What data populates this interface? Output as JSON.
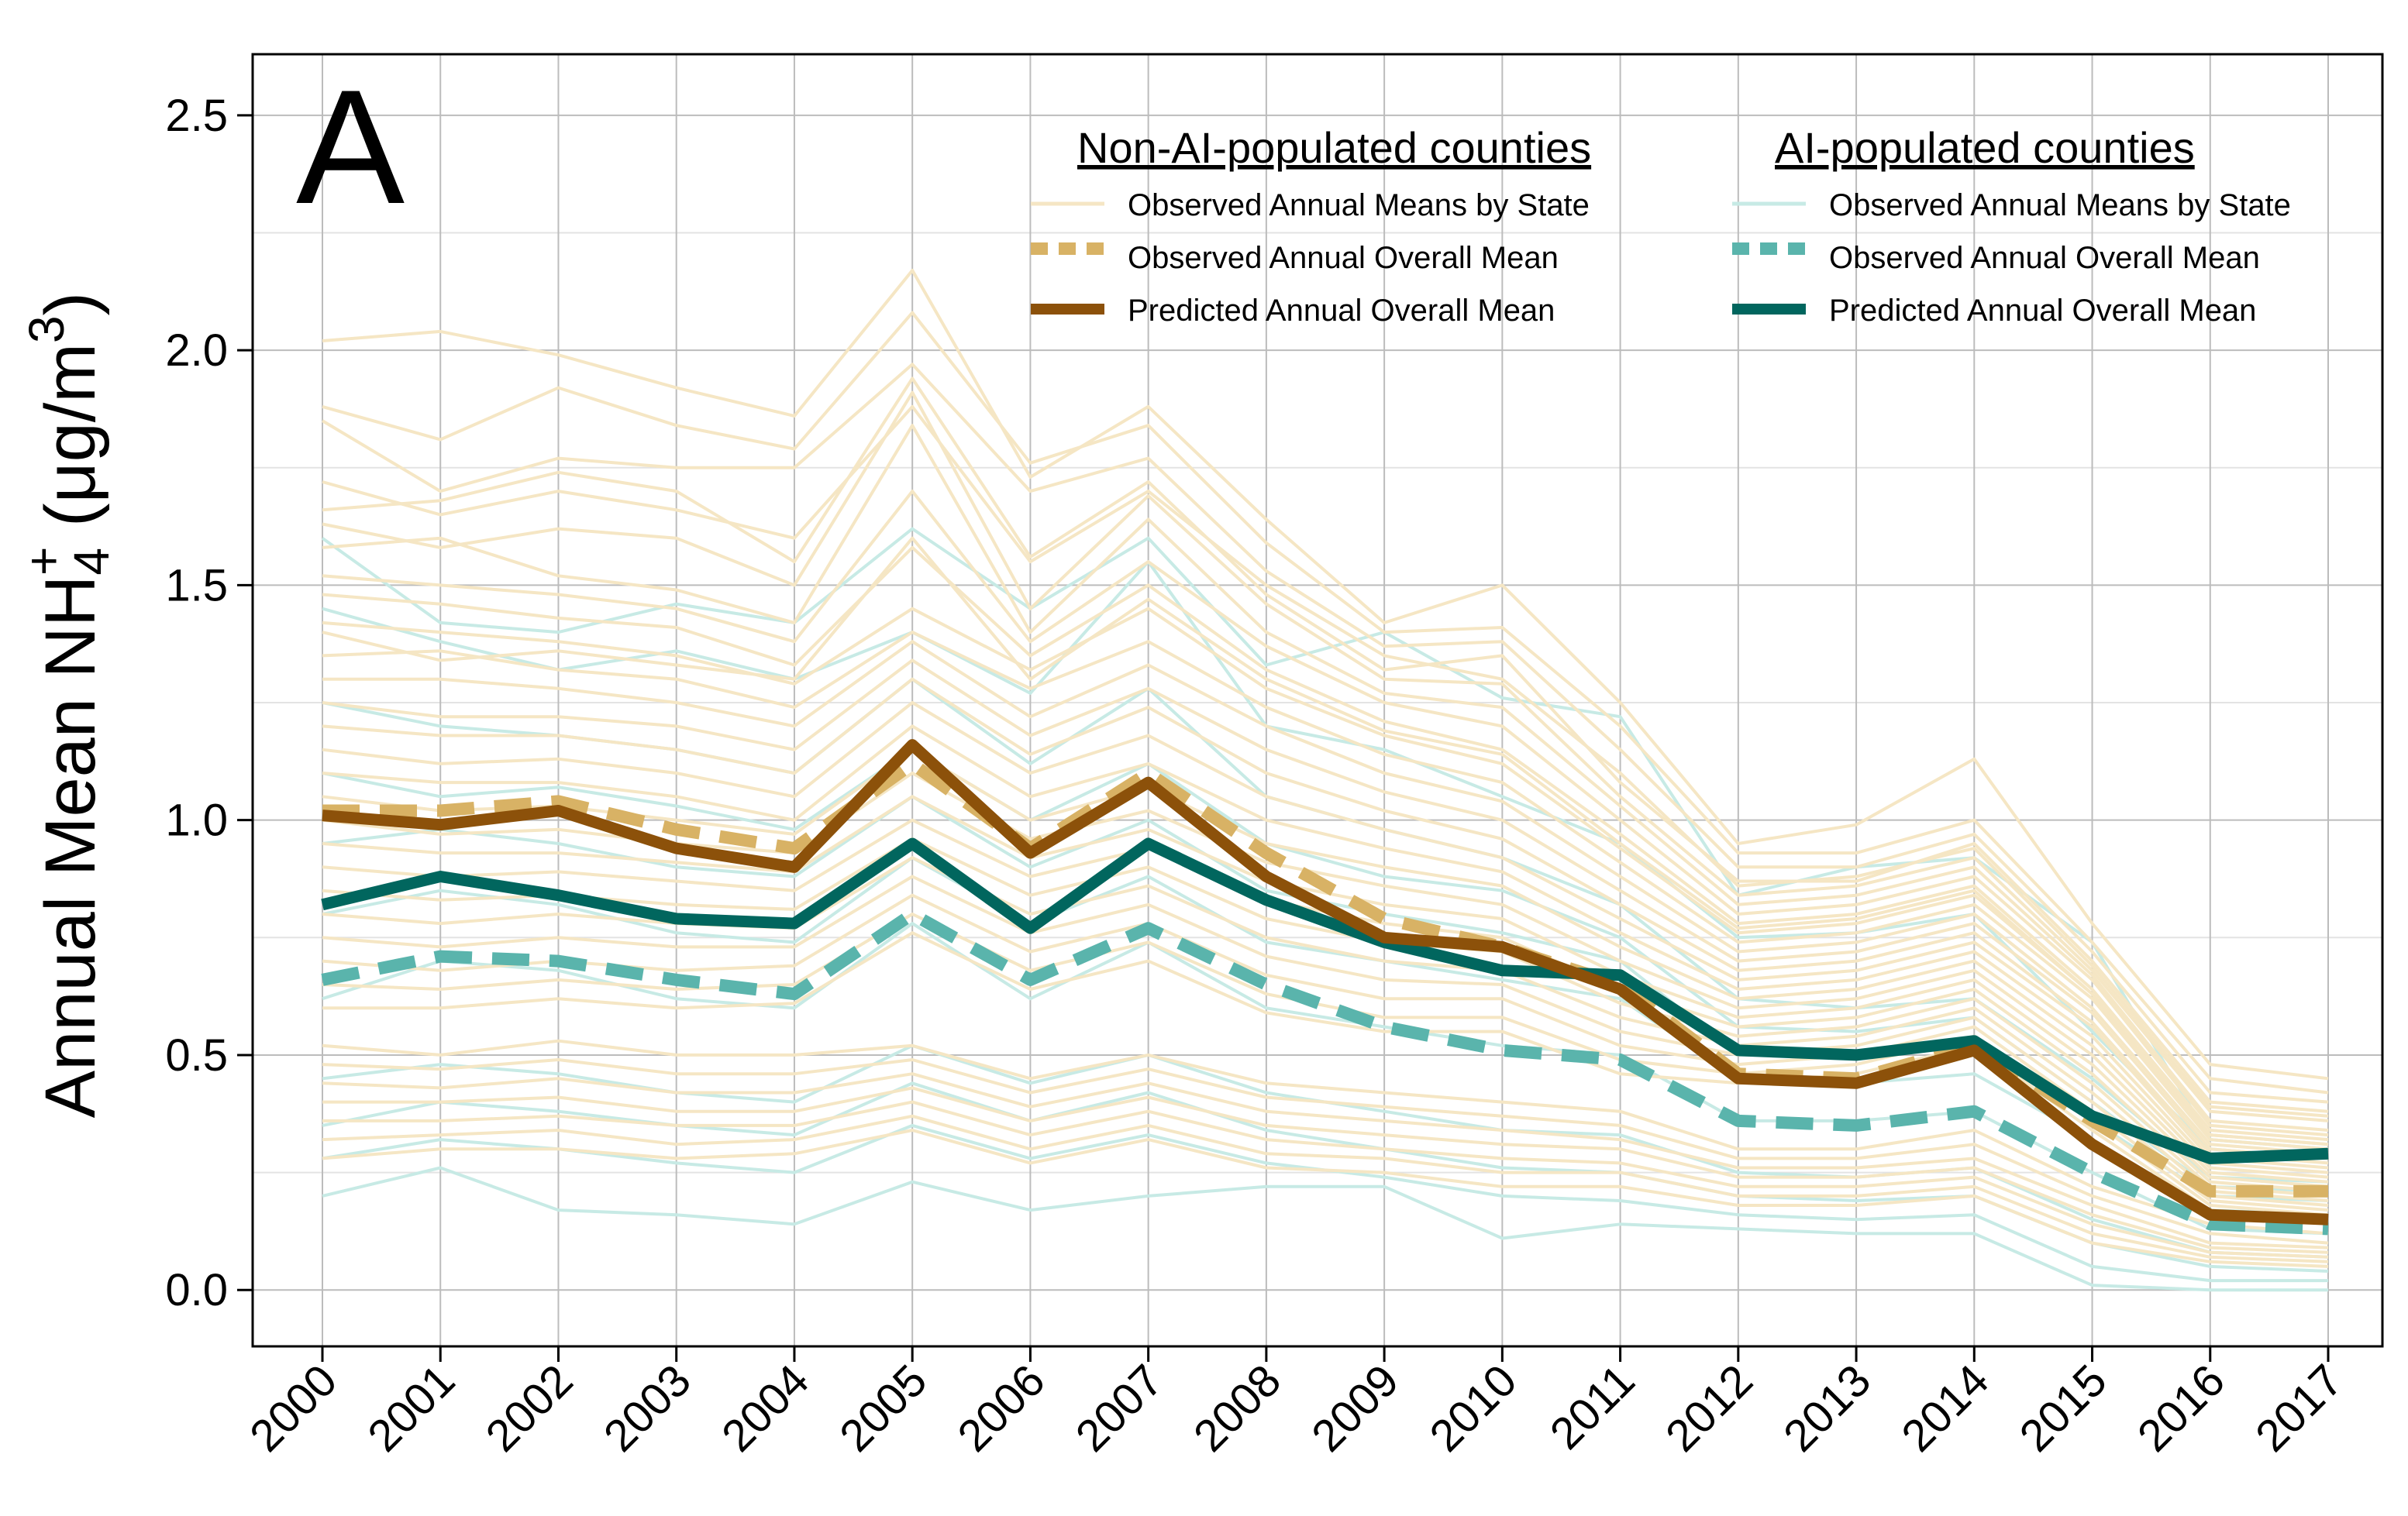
{
  "chart_data": {
    "type": "line",
    "panel_label": "A",
    "ylabel": {
      "main": "Annual Mean NH",
      "subscript": "4",
      "superscript": "+",
      "unit_open": " (μg/m",
      "unit_sup": "3",
      "unit_close": ")"
    },
    "xlabel": "",
    "x": [
      2000,
      2001,
      2002,
      2003,
      2004,
      2005,
      2006,
      2007,
      2008,
      2009,
      2010,
      2011,
      2012,
      2013,
      2014,
      2015,
      2016,
      2017
    ],
    "x_tick_labels": [
      "2000",
      "2001",
      "2002",
      "2003",
      "2004",
      "2005",
      "2006",
      "2007",
      "2008",
      "2009",
      "2010",
      "2011",
      "2012",
      "2013",
      "2014",
      "2015",
      "2016",
      "2017"
    ],
    "y_ticks": [
      0.0,
      0.5,
      1.0,
      1.5,
      2.0,
      2.5
    ],
    "y_tick_labels": [
      "0.0",
      "0.5",
      "1.0",
      "1.5",
      "2.0",
      "2.5"
    ],
    "ylim": [
      -0.12,
      2.63
    ],
    "grid": true,
    "legend": {
      "placement": "top-right",
      "groups": [
        {
          "title": "Non-AI-populated counties",
          "entries": [
            {
              "label": "Observed Annual Means by State",
              "color": "#f5e6c4",
              "style": "solid-thin"
            },
            {
              "label": "Observed Annual Overall Mean",
              "color": "#d8b265",
              "style": "dashed-thick"
            },
            {
              "label": "Predicted Annual Overall Mean",
              "color": "#8c510a",
              "style": "solid-thick"
            }
          ]
        },
        {
          "title": "AI-populated counties",
          "entries": [
            {
              "label": "Observed Annual Means by State",
              "color": "#c7eae5",
              "style": "solid-thin"
            },
            {
              "label": "Observed Annual Overall Mean",
              "color": "#5ab4ac",
              "style": "dashed-thick"
            },
            {
              "label": "Predicted Annual Overall Mean",
              "color": "#01665e",
              "style": "solid-thick"
            }
          ]
        }
      ]
    },
    "series": [
      {
        "name": "Non-AI-populated counties: Predicted Annual Overall Mean",
        "color": "#8c510a",
        "style": "solid-thick",
        "values": [
          1.01,
          0.99,
          1.02,
          0.94,
          0.9,
          1.16,
          0.93,
          1.08,
          0.88,
          0.75,
          0.73,
          0.64,
          0.45,
          0.44,
          0.51,
          0.31,
          0.16,
          0.15
        ]
      },
      {
        "name": "Non-AI-populated counties: Observed Annual Overall Mean",
        "color": "#d8b265",
        "style": "dashed-thick",
        "values": [
          1.02,
          1.02,
          1.04,
          0.98,
          0.94,
          1.12,
          0.94,
          1.1,
          0.93,
          0.79,
          0.73,
          0.65,
          0.46,
          0.45,
          0.52,
          0.36,
          0.21,
          0.21
        ]
      },
      {
        "name": "AI-populated counties: Predicted Annual Overall Mean",
        "color": "#01665e",
        "style": "solid-thick",
        "values": [
          0.82,
          0.88,
          0.84,
          0.79,
          0.78,
          0.95,
          0.77,
          0.95,
          0.83,
          0.74,
          0.68,
          0.67,
          0.51,
          0.5,
          0.53,
          0.37,
          0.28,
          0.29
        ]
      },
      {
        "name": "AI-populated counties: Observed Annual Overall Mean",
        "color": "#5ab4ac",
        "style": "dashed-thick",
        "values": [
          0.66,
          0.71,
          0.7,
          0.66,
          0.63,
          0.8,
          0.66,
          0.77,
          0.65,
          0.56,
          0.51,
          0.49,
          0.36,
          0.35,
          0.38,
          0.25,
          0.14,
          0.13
        ]
      }
    ],
    "state_series_nonai": [
      [
        2.02,
        2.04,
        1.99,
        1.92,
        1.86,
        2.17,
        1.73,
        1.88,
        1.64,
        1.42,
        1.5,
        1.25,
        0.95,
        0.99,
        1.13,
        0.78,
        0.48,
        0.45
      ],
      [
        1.88,
        1.81,
        1.92,
        1.84,
        1.79,
        2.08,
        1.76,
        1.84,
        1.59,
        1.4,
        1.41,
        1.2,
        0.93,
        0.93,
        1.0,
        0.74,
        0.45,
        0.42
      ],
      [
        1.85,
        1.7,
        1.77,
        1.75,
        1.75,
        1.97,
        1.7,
        1.77,
        1.53,
        1.37,
        1.38,
        1.15,
        0.9,
        0.9,
        0.97,
        0.72,
        0.42,
        0.4
      ],
      [
        1.66,
        1.68,
        1.74,
        1.7,
        1.55,
        1.94,
        1.56,
        1.72,
        1.48,
        1.32,
        1.35,
        1.08,
        0.87,
        0.87,
        0.95,
        0.7,
        0.4,
        0.38
      ],
      [
        1.63,
        1.58,
        1.62,
        1.6,
        1.5,
        1.91,
        1.45,
        1.69,
        1.46,
        1.3,
        1.29,
        1.05,
        0.84,
        0.86,
        0.92,
        0.68,
        0.38,
        0.36
      ],
      [
        1.58,
        1.6,
        1.52,
        1.49,
        1.42,
        1.84,
        1.4,
        1.64,
        1.4,
        1.27,
        1.24,
        1.03,
        0.82,
        0.84,
        0.9,
        0.67,
        0.36,
        0.34
      ],
      [
        1.52,
        1.5,
        1.48,
        1.45,
        1.38,
        1.7,
        1.38,
        1.55,
        1.37,
        1.25,
        1.2,
        1.0,
        0.8,
        0.82,
        0.88,
        0.66,
        0.35,
        0.33
      ],
      [
        1.48,
        1.46,
        1.43,
        1.41,
        1.33,
        1.58,
        1.35,
        1.5,
        1.32,
        1.21,
        1.15,
        0.97,
        0.78,
        0.8,
        0.86,
        0.64,
        0.34,
        0.32
      ],
      [
        1.42,
        1.4,
        1.38,
        1.35,
        1.29,
        1.45,
        1.32,
        1.45,
        1.28,
        1.18,
        1.12,
        0.94,
        0.76,
        0.78,
        0.84,
        0.63,
        0.33,
        0.31
      ],
      [
        1.35,
        1.36,
        1.32,
        1.3,
        1.24,
        1.4,
        1.28,
        1.38,
        1.24,
        1.14,
        1.08,
        0.91,
        0.74,
        0.76,
        0.82,
        0.62,
        0.32,
        0.3
      ],
      [
        1.3,
        1.3,
        1.28,
        1.25,
        1.2,
        1.38,
        1.22,
        1.33,
        1.2,
        1.1,
        1.04,
        0.88,
        0.72,
        0.74,
        0.8,
        0.6,
        0.31,
        0.29
      ],
      [
        1.25,
        1.22,
        1.22,
        1.2,
        1.15,
        1.34,
        1.18,
        1.28,
        1.15,
        1.06,
        1.0,
        0.85,
        0.7,
        0.72,
        0.78,
        0.59,
        0.3,
        0.28
      ],
      [
        1.2,
        1.18,
        1.18,
        1.15,
        1.1,
        1.3,
        1.14,
        1.24,
        1.1,
        1.02,
        0.96,
        0.82,
        0.68,
        0.7,
        0.76,
        0.57,
        0.29,
        0.27
      ],
      [
        1.15,
        1.12,
        1.13,
        1.1,
        1.05,
        1.25,
        1.1,
        1.18,
        1.05,
        0.98,
        0.92,
        0.79,
        0.66,
        0.68,
        0.74,
        0.56,
        0.28,
        0.26
      ],
      [
        1.1,
        1.08,
        1.08,
        1.05,
        1.0,
        1.2,
        1.05,
        1.12,
        1.0,
        0.94,
        0.89,
        0.76,
        0.64,
        0.66,
        0.72,
        0.54,
        0.27,
        0.25
      ],
      [
        1.05,
        1.02,
        1.03,
        1.0,
        0.97,
        1.15,
        1.0,
        1.07,
        0.95,
        0.9,
        0.86,
        0.73,
        0.62,
        0.64,
        0.7,
        0.52,
        0.26,
        0.24
      ],
      [
        1.0,
        0.97,
        0.98,
        0.95,
        0.93,
        1.1,
        0.96,
        1.02,
        0.91,
        0.86,
        0.82,
        0.7,
        0.6,
        0.62,
        0.68,
        0.5,
        0.25,
        0.23
      ],
      [
        0.95,
        0.93,
        0.93,
        0.91,
        0.89,
        1.05,
        0.92,
        0.98,
        0.87,
        0.82,
        0.79,
        0.67,
        0.58,
        0.6,
        0.66,
        0.48,
        0.24,
        0.22
      ],
      [
        0.9,
        0.88,
        0.89,
        0.87,
        0.85,
        1.0,
        0.88,
        0.94,
        0.83,
        0.78,
        0.75,
        0.64,
        0.56,
        0.58,
        0.64,
        0.46,
        0.23,
        0.21
      ],
      [
        0.85,
        0.83,
        0.84,
        0.82,
        0.81,
        0.96,
        0.84,
        0.9,
        0.79,
        0.74,
        0.72,
        0.61,
        0.54,
        0.56,
        0.62,
        0.44,
        0.22,
        0.2
      ],
      [
        0.8,
        0.78,
        0.8,
        0.78,
        0.77,
        0.92,
        0.8,
        0.86,
        0.75,
        0.7,
        0.68,
        0.58,
        0.52,
        0.54,
        0.6,
        0.42,
        0.21,
        0.19
      ],
      [
        0.75,
        0.73,
        0.75,
        0.73,
        0.73,
        0.88,
        0.76,
        0.82,
        0.71,
        0.66,
        0.65,
        0.55,
        0.5,
        0.52,
        0.58,
        0.4,
        0.2,
        0.18
      ],
      [
        0.7,
        0.68,
        0.7,
        0.68,
        0.69,
        0.84,
        0.72,
        0.78,
        0.67,
        0.62,
        0.62,
        0.52,
        0.48,
        0.5,
        0.56,
        0.38,
        0.19,
        0.17
      ],
      [
        0.65,
        0.64,
        0.66,
        0.64,
        0.65,
        0.8,
        0.68,
        0.74,
        0.63,
        0.58,
        0.58,
        0.49,
        0.46,
        0.48,
        0.54,
        0.36,
        0.18,
        0.16
      ],
      [
        0.6,
        0.6,
        0.62,
        0.6,
        0.61,
        0.76,
        0.64,
        0.7,
        0.59,
        0.55,
        0.55,
        0.46,
        0.44,
        0.46,
        0.52,
        0.34,
        0.17,
        0.15
      ],
      [
        0.52,
        0.5,
        0.53,
        0.5,
        0.5,
        0.52,
        0.45,
        0.5,
        0.44,
        0.42,
        0.4,
        0.38,
        0.3,
        0.3,
        0.34,
        0.22,
        0.14,
        0.12
      ],
      [
        0.48,
        0.47,
        0.49,
        0.46,
        0.46,
        0.49,
        0.42,
        0.47,
        0.41,
        0.39,
        0.37,
        0.35,
        0.28,
        0.28,
        0.31,
        0.2,
        0.12,
        0.1
      ],
      [
        0.44,
        0.43,
        0.45,
        0.42,
        0.42,
        0.46,
        0.39,
        0.44,
        0.38,
        0.36,
        0.34,
        0.32,
        0.26,
        0.26,
        0.28,
        0.18,
        0.1,
        0.09
      ],
      [
        0.4,
        0.4,
        0.41,
        0.38,
        0.38,
        0.43,
        0.36,
        0.41,
        0.35,
        0.33,
        0.31,
        0.3,
        0.24,
        0.24,
        0.26,
        0.16,
        0.09,
        0.08
      ],
      [
        0.36,
        0.36,
        0.37,
        0.35,
        0.35,
        0.4,
        0.33,
        0.38,
        0.32,
        0.3,
        0.28,
        0.27,
        0.22,
        0.22,
        0.24,
        0.14,
        0.08,
        0.07
      ],
      [
        0.32,
        0.33,
        0.34,
        0.31,
        0.32,
        0.37,
        0.3,
        0.35,
        0.29,
        0.28,
        0.25,
        0.25,
        0.2,
        0.2,
        0.22,
        0.12,
        0.07,
        0.06
      ],
      [
        0.28,
        0.3,
        0.3,
        0.28,
        0.29,
        0.34,
        0.27,
        0.32,
        0.26,
        0.25,
        0.22,
        0.22,
        0.18,
        0.18,
        0.2,
        0.1,
        0.06,
        0.05
      ],
      [
        1.72,
        1.65,
        1.7,
        1.66,
        1.6,
        1.88,
        1.55,
        1.7,
        1.5,
        1.35,
        1.3,
        1.1,
        0.86,
        0.88,
        0.94,
        0.69,
        0.39,
        0.37
      ],
      [
        1.4,
        1.34,
        1.36,
        1.33,
        1.3,
        1.6,
        1.3,
        1.47,
        1.3,
        1.19,
        1.14,
        0.95,
        0.77,
        0.79,
        0.85,
        0.63,
        0.33,
        0.31
      ]
    ],
    "state_series_ai": [
      [
        1.6,
        1.42,
        1.4,
        1.46,
        1.42,
        1.62,
        1.45,
        1.6,
        1.33,
        1.4,
        1.26,
        1.22,
        0.84,
        0.9,
        0.92,
        0.74,
        0.32,
        0.3
      ],
      [
        1.45,
        1.38,
        1.32,
        1.36,
        1.3,
        1.4,
        1.27,
        1.55,
        1.2,
        1.15,
        1.05,
        0.95,
        0.75,
        0.76,
        0.8,
        0.55,
        0.3,
        0.28
      ],
      [
        1.25,
        1.2,
        1.18,
        1.15,
        1.1,
        1.3,
        1.12,
        1.28,
        1.05,
        0.98,
        0.92,
        0.82,
        0.62,
        0.6,
        0.62,
        0.45,
        0.24,
        0.23
      ],
      [
        1.1,
        1.05,
        1.07,
        1.03,
        0.98,
        1.15,
        1.0,
        1.12,
        0.95,
        0.88,
        0.85,
        0.75,
        0.56,
        0.55,
        0.58,
        0.4,
        0.22,
        0.21
      ],
      [
        0.95,
        0.98,
        0.95,
        0.9,
        0.88,
        1.05,
        0.9,
        1.0,
        0.85,
        0.8,
        0.76,
        0.7,
        0.5,
        0.5,
        0.52,
        0.36,
        0.2,
        0.19
      ],
      [
        0.8,
        0.85,
        0.82,
        0.76,
        0.74,
        0.92,
        0.78,
        0.88,
        0.74,
        0.7,
        0.66,
        0.62,
        0.45,
        0.44,
        0.46,
        0.32,
        0.17,
        0.16
      ],
      [
        0.62,
        0.7,
        0.68,
        0.62,
        0.6,
        0.78,
        0.62,
        0.74,
        0.6,
        0.56,
        0.52,
        0.5,
        0.36,
        0.36,
        0.38,
        0.25,
        0.13,
        0.12
      ],
      [
        0.45,
        0.48,
        0.46,
        0.42,
        0.4,
        0.52,
        0.44,
        0.5,
        0.42,
        0.38,
        0.34,
        0.33,
        0.25,
        0.24,
        0.26,
        0.15,
        0.08,
        0.07
      ],
      [
        0.35,
        0.4,
        0.38,
        0.35,
        0.33,
        0.44,
        0.36,
        0.42,
        0.34,
        0.3,
        0.26,
        0.25,
        0.2,
        0.19,
        0.2,
        0.1,
        0.05,
        0.04
      ],
      [
        0.28,
        0.32,
        0.3,
        0.27,
        0.25,
        0.35,
        0.28,
        0.33,
        0.27,
        0.24,
        0.2,
        0.19,
        0.16,
        0.15,
        0.16,
        0.05,
        0.02,
        0.02
      ],
      [
        0.2,
        0.26,
        0.17,
        0.16,
        0.14,
        0.23,
        0.17,
        0.2,
        0.22,
        0.22,
        0.11,
        0.14,
        0.13,
        0.12,
        0.12,
        0.01,
        0.0,
        0.0
      ]
    ]
  }
}
